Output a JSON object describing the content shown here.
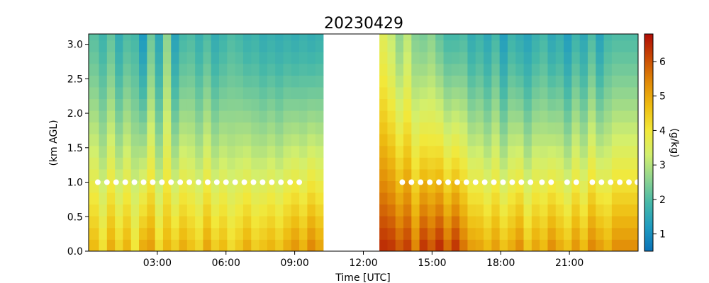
{
  "chart_data": {
    "type": "heatmap",
    "title": "20230429",
    "xlabel": "Time [UTC]",
    "ylabel": "(km AGL)",
    "colorbar_label": "(g/kg)",
    "xlim_hours": [
      0,
      24
    ],
    "ylim_km": [
      0,
      3.15
    ],
    "x_ticks": [
      {
        "hour": 3,
        "label": "03:00"
      },
      {
        "hour": 6,
        "label": "06:00"
      },
      {
        "hour": 9,
        "label": "09:00"
      },
      {
        "hour": 12,
        "label": "12:00"
      },
      {
        "hour": 15,
        "label": "15:00"
      },
      {
        "hour": 18,
        "label": "18:00"
      },
      {
        "hour": 21,
        "label": "21:00"
      }
    ],
    "y_ticks": [
      {
        "value": 0.0,
        "label": "0.0"
      },
      {
        "value": 0.5,
        "label": "0.5"
      },
      {
        "value": 1.0,
        "label": "1.0"
      },
      {
        "value": 1.5,
        "label": "1.5"
      },
      {
        "value": 2.0,
        "label": "2.0"
      },
      {
        "value": 2.5,
        "label": "2.5"
      },
      {
        "value": 3.0,
        "label": "3.0"
      }
    ],
    "colorbar": {
      "range": [
        0.5,
        6.8
      ],
      "ticks": [
        {
          "value": 1,
          "label": "1"
        },
        {
          "value": 2,
          "label": "2"
        },
        {
          "value": 3,
          "label": "3"
        },
        {
          "value": 4,
          "label": "4"
        },
        {
          "value": 5,
          "label": "5"
        },
        {
          "value": 6,
          "label": "6"
        }
      ],
      "colormap": [
        "#0a72b8",
        "#1f9bc0",
        "#46b8a8",
        "#8fd490",
        "#d2ef6e",
        "#f2e83a",
        "#eebd12",
        "#e18a07",
        "#c94a05",
        "#b00d06"
      ]
    },
    "data_gap_hours": [
      10.45,
      12.55
    ],
    "profile_start_hour": 0.1,
    "profile_step_hours": 0.35,
    "levels_km": [
      0.0,
      0.17,
      0.34,
      0.51,
      0.68,
      0.85,
      1.02,
      1.19,
      1.36,
      1.53,
      1.7,
      1.87,
      2.04,
      2.21,
      2.38,
      2.55,
      2.72,
      2.89,
      3.06
    ],
    "surface_values": [
      4.7,
      4.1,
      4.9,
      4.3,
      4.8,
      4.0,
      4.9,
      5.1,
      4.2,
      4.8,
      4.4,
      4.9,
      4.6,
      4.3,
      5.0,
      4.4,
      4.7,
      4.2,
      4.5,
      4.9,
      4.4,
      4.6,
      4.8,
      4.5,
      4.9,
      5.2,
      4.8,
      5.4,
      5.0,
      4.6,
      6.2,
      6.3,
      6.4,
      6.4,
      6.3,
      6.0,
      6.4,
      6.3,
      5.9,
      6.2,
      5.4,
      6.3,
      5.9,
      6.4,
      5.7,
      6.3,
      5.6,
      5.1,
      5.0,
      4.7,
      5.1,
      4.6,
      4.9,
      5.3,
      4.5,
      5.0,
      4.7,
      5.3,
      4.9,
      4.6,
      5.2,
      4.7,
      5.4,
      5.1,
      4.8,
      5.3
    ],
    "top_values": [
      2.1,
      1.8,
      2.2,
      1.6,
      2.0,
      1.9,
      1.2,
      2.3,
      1.5,
      2.6,
      1.4,
      1.9,
      2.0,
      1.7,
      2.0,
      1.6,
      1.8,
      2.0,
      1.9,
      1.7,
      1.8,
      1.6,
      1.7,
      1.6,
      1.7,
      1.6,
      1.7,
      1.6,
      1.7,
      1.7,
      3.8,
      3.8,
      3.9,
      3.6,
      3.9,
      2.6,
      3.6,
      3.2,
      2.6,
      3.1,
      2.5,
      2.4,
      2.6,
      2.2,
      1.9,
      1.9,
      2.0,
      1.6,
      1.8,
      1.5,
      1.9,
      1.3,
      1.8,
      1.6,
      1.4,
      1.7,
      1.9,
      1.5,
      1.7,
      1.3,
      1.8,
      1.5,
      2.0,
      1.4,
      1.9,
      2.0
    ],
    "marker_height_km": 1.0,
    "marker_hours": [
      0.4,
      0.8,
      1.2,
      1.6,
      2.0,
      2.4,
      2.8,
      3.2,
      3.6,
      4.0,
      4.4,
      4.8,
      5.2,
      5.6,
      6.0,
      6.4,
      6.8,
      7.2,
      7.6,
      8.0,
      8.4,
      8.8,
      9.2,
      13.7,
      14.1,
      14.5,
      14.9,
      15.3,
      15.7,
      16.1,
      16.5,
      16.9,
      17.3,
      17.7,
      18.1,
      18.5,
      18.9,
      19.3,
      19.8,
      20.2,
      20.9,
      21.3,
      22.0,
      22.4,
      22.8,
      23.2,
      23.6,
      24.0
    ]
  }
}
